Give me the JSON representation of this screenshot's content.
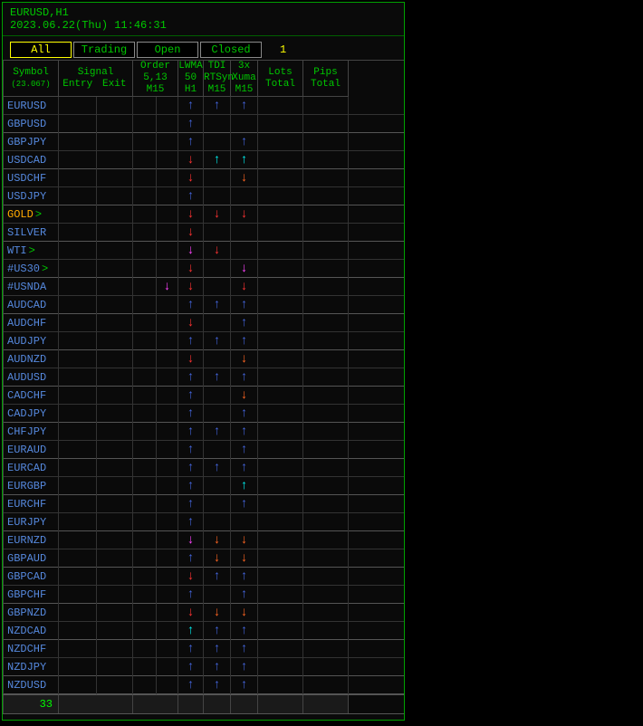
{
  "header": {
    "pair_tf": "EURUSD,H1",
    "timestamp": "2023.06.22(Thu) 11:46:31"
  },
  "tabs": {
    "all": "All",
    "trading": "Trading",
    "open": "Open",
    "closed": "Closed",
    "count": "1"
  },
  "columns": {
    "symbol": {
      "l1": "Symbol",
      "l2": "(23.067)"
    },
    "signal": {
      "l1": "Signal",
      "entry": "Entry",
      "exit": "Exit"
    },
    "order": {
      "l1": "Order",
      "l2": "5,13",
      "l3": "M15"
    },
    "lwma": {
      "l1": "LWMA",
      "l2": "50",
      "l3": "H1"
    },
    "tdi": {
      "l1": "TDI",
      "l2": "RTSyn",
      "l3": "M15"
    },
    "xuma": {
      "l1": "3x",
      "l2": "Xuma",
      "l3": "M15"
    },
    "lots": {
      "l1": "Lots",
      "l2": "Total"
    },
    "pips": {
      "l1": "Pips",
      "l2": "Total"
    }
  },
  "arrows": {
    "up": "↑",
    "down": "↓"
  },
  "colors": {
    "green": "#00c800",
    "yellow": "#ffff00",
    "blue_sym": "#5588dd",
    "gold_sym": "#ffaa00",
    "ar_blue": "#4466dd",
    "ar_red": "#ff3333",
    "ar_magenta": "#ff44ff",
    "ar_cyan": "#00eeee",
    "ar_orange": "#ff6622",
    "bg": "#000000",
    "border": "#444444"
  },
  "rows": [
    {
      "sym": "EURUSD",
      "gt": false,
      "sep": false,
      "order1": "",
      "order2": "",
      "lwma": "up-blue",
      "tdi": "up-blue",
      "xuma": "up-blue"
    },
    {
      "sym": "GBPUSD",
      "gt": false,
      "sep": true,
      "order1": "",
      "order2": "",
      "lwma": "up-blue",
      "tdi": "",
      "xuma": ""
    },
    {
      "sym": "GBPJPY",
      "gt": false,
      "sep": false,
      "order1": "",
      "order2": "",
      "lwma": "up-blue",
      "tdi": "",
      "xuma": "up-blue"
    },
    {
      "sym": "USDCAD",
      "gt": false,
      "sep": true,
      "order1": "",
      "order2": "",
      "lwma": "down-red",
      "tdi": "up-cyan",
      "xuma": "up-cyan"
    },
    {
      "sym": "USDCHF",
      "gt": false,
      "sep": false,
      "order1": "",
      "order2": "",
      "lwma": "down-red",
      "tdi": "",
      "xuma": "down-orange"
    },
    {
      "sym": "USDJPY",
      "gt": false,
      "sep": true,
      "order1": "",
      "order2": "",
      "lwma": "up-blue",
      "tdi": "",
      "xuma": ""
    },
    {
      "sym": "GOLD",
      "gt": true,
      "gold": true,
      "sep": false,
      "order1": "",
      "order2": "",
      "lwma": "down-red",
      "tdi": "down-red",
      "xuma": "down-red"
    },
    {
      "sym": "SILVER",
      "gt": false,
      "sep": true,
      "order1": "",
      "order2": "",
      "lwma": "down-red",
      "tdi": "",
      "xuma": ""
    },
    {
      "sym": "WTI",
      "gt": true,
      "sep": false,
      "order1": "",
      "order2": "",
      "lwma": "down-magenta",
      "tdi": "down-red",
      "xuma": ""
    },
    {
      "sym": "#US30",
      "gt": true,
      "sep": true,
      "order1": "",
      "order2": "",
      "lwma": "down-red",
      "tdi": "",
      "xuma": "down-magenta"
    },
    {
      "sym": "#USNDA",
      "gt": false,
      "sep": false,
      "order1": "",
      "order2": "down-magenta",
      "lwma": "down-red",
      "tdi": "",
      "xuma": "down-red"
    },
    {
      "sym": "AUDCAD",
      "gt": false,
      "sep": true,
      "order1": "",
      "order2": "",
      "lwma": "up-blue",
      "tdi": "up-blue",
      "xuma": "up-blue"
    },
    {
      "sym": "AUDCHF",
      "gt": false,
      "sep": false,
      "order1": "",
      "order2": "",
      "lwma": "down-red",
      "tdi": "",
      "xuma": "up-blue"
    },
    {
      "sym": "AUDJPY",
      "gt": false,
      "sep": true,
      "order1": "",
      "order2": "",
      "lwma": "up-blue",
      "tdi": "up-blue",
      "xuma": "up-blue"
    },
    {
      "sym": "AUDNZD",
      "gt": false,
      "sep": false,
      "order1": "",
      "order2": "",
      "lwma": "down-red",
      "tdi": "",
      "xuma": "down-orange"
    },
    {
      "sym": "AUDUSD",
      "gt": false,
      "sep": true,
      "order1": "",
      "order2": "",
      "lwma": "up-blue",
      "tdi": "up-blue",
      "xuma": "up-blue"
    },
    {
      "sym": "CADCHF",
      "gt": false,
      "sep": false,
      "order1": "",
      "order2": "",
      "lwma": "up-blue",
      "tdi": "",
      "xuma": "down-orange"
    },
    {
      "sym": "CADJPY",
      "gt": false,
      "sep": true,
      "order1": "",
      "order2": "",
      "lwma": "up-blue",
      "tdi": "",
      "xuma": "up-blue"
    },
    {
      "sym": "CHFJPY",
      "gt": false,
      "sep": false,
      "order1": "",
      "order2": "",
      "lwma": "up-blue",
      "tdi": "up-blue",
      "xuma": "up-blue"
    },
    {
      "sym": "EURAUD",
      "gt": false,
      "sep": true,
      "order1": "",
      "order2": "",
      "lwma": "up-blue",
      "tdi": "",
      "xuma": "up-blue"
    },
    {
      "sym": "EURCAD",
      "gt": false,
      "sep": false,
      "order1": "",
      "order2": "",
      "lwma": "up-blue",
      "tdi": "up-blue",
      "xuma": "up-blue"
    },
    {
      "sym": "EURGBP",
      "gt": false,
      "sep": true,
      "order1": "",
      "order2": "",
      "lwma": "up-blue",
      "tdi": "",
      "xuma": "up-cyan"
    },
    {
      "sym": "EURCHF",
      "gt": false,
      "sep": false,
      "order1": "",
      "order2": "",
      "lwma": "up-blue",
      "tdi": "",
      "xuma": "up-blue"
    },
    {
      "sym": "EURJPY",
      "gt": false,
      "sep": true,
      "order1": "",
      "order2": "",
      "lwma": "up-blue",
      "tdi": "",
      "xuma": ""
    },
    {
      "sym": "EURNZD",
      "gt": false,
      "sep": false,
      "order1": "",
      "order2": "",
      "lwma": "down-magenta",
      "tdi": "down-orange",
      "xuma": "down-orange"
    },
    {
      "sym": "GBPAUD",
      "gt": false,
      "sep": true,
      "order1": "",
      "order2": "",
      "lwma": "up-blue",
      "tdi": "down-orange",
      "xuma": "down-orange"
    },
    {
      "sym": "GBPCAD",
      "gt": false,
      "sep": false,
      "order1": "",
      "order2": "",
      "lwma": "down-red",
      "tdi": "up-blue",
      "xuma": "up-blue"
    },
    {
      "sym": "GBPCHF",
      "gt": false,
      "sep": true,
      "order1": "",
      "order2": "",
      "lwma": "up-blue",
      "tdi": "",
      "xuma": "up-blue"
    },
    {
      "sym": "GBPNZD",
      "gt": false,
      "sep": false,
      "order1": "",
      "order2": "",
      "lwma": "down-red",
      "tdi": "down-orange",
      "xuma": "down-orange"
    },
    {
      "sym": "NZDCAD",
      "gt": false,
      "sep": true,
      "order1": "",
      "order2": "",
      "lwma": "up-cyan",
      "tdi": "up-blue",
      "xuma": "up-blue"
    },
    {
      "sym": "NZDCHF",
      "gt": false,
      "sep": false,
      "order1": "",
      "order2": "",
      "lwma": "up-blue",
      "tdi": "up-blue",
      "xuma": "up-blue"
    },
    {
      "sym": "NZDJPY",
      "gt": false,
      "sep": true,
      "order1": "",
      "order2": "",
      "lwma": "up-blue",
      "tdi": "up-blue",
      "xuma": "up-blue"
    },
    {
      "sym": "NZDUSD",
      "gt": false,
      "sep": true,
      "order1": "",
      "order2": "",
      "lwma": "up-blue",
      "tdi": "up-blue",
      "xuma": "up-blue"
    }
  ],
  "footer": {
    "count": "33"
  }
}
